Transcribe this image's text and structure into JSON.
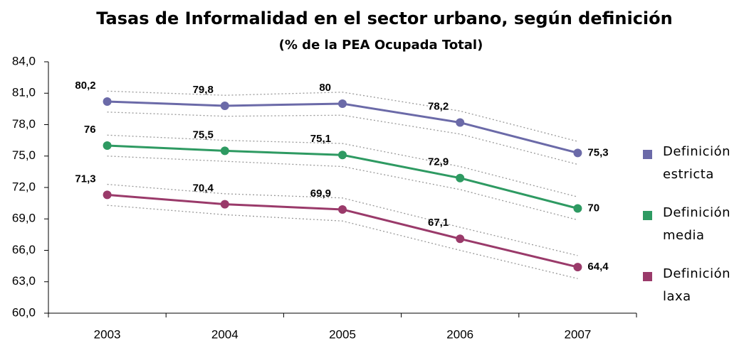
{
  "chart_data": {
    "type": "line",
    "title": "Tasas de Informalidad en el sector urbano, según definición",
    "subtitle": "(% de la PEA Ocupada Total)",
    "categories": [
      "2003",
      "2004",
      "2005",
      "2006",
      "2007"
    ],
    "ylim": [
      60,
      84
    ],
    "yticks": [
      {
        "value": 60,
        "label": "60,0"
      },
      {
        "value": 63,
        "label": "63,0"
      },
      {
        "value": 66,
        "label": "66,0"
      },
      {
        "value": 69,
        "label": "69,0"
      },
      {
        "value": 72,
        "label": "72,0"
      },
      {
        "value": 75,
        "label": "75,0"
      },
      {
        "value": 78,
        "label": "78,0"
      },
      {
        "value": 81,
        "label": "81,0"
      },
      {
        "value": 84,
        "label": "84,0"
      }
    ],
    "grid": false,
    "legend": "right",
    "series": [
      {
        "name": "Definición estricta",
        "color": "#6b6aa8",
        "values": [
          80.2,
          79.8,
          80,
          78.2,
          75.3
        ],
        "value_labels": [
          "80,2",
          "79,8",
          "80",
          "78,2",
          "75,3"
        ],
        "upper": [
          81.2,
          80.8,
          81.1,
          79.3,
          76.4
        ],
        "lower": [
          79.2,
          78.8,
          78.9,
          77.1,
          74.2
        ]
      },
      {
        "name": "Definición media",
        "color": "#2e9a62",
        "values": [
          76,
          75.5,
          75.1,
          72.9,
          70
        ],
        "value_labels": [
          "76",
          "75,5",
          "75,1",
          "72,9",
          "70"
        ],
        "upper": [
          77,
          76.5,
          76.2,
          74,
          71.1
        ],
        "lower": [
          75,
          74.5,
          74,
          71.8,
          68.9
        ]
      },
      {
        "name": "Definición laxa",
        "color": "#9a3a6a",
        "values": [
          71.3,
          70.4,
          69.9,
          67.1,
          64.4
        ],
        "value_labels": [
          "71,3",
          "70,4",
          "69,9",
          "67,1",
          "64,4"
        ],
        "upper": [
          72.3,
          71.4,
          71,
          68.2,
          65.5
        ],
        "lower": [
          70.3,
          69.4,
          68.8,
          66,
          63.3
        ]
      }
    ]
  }
}
